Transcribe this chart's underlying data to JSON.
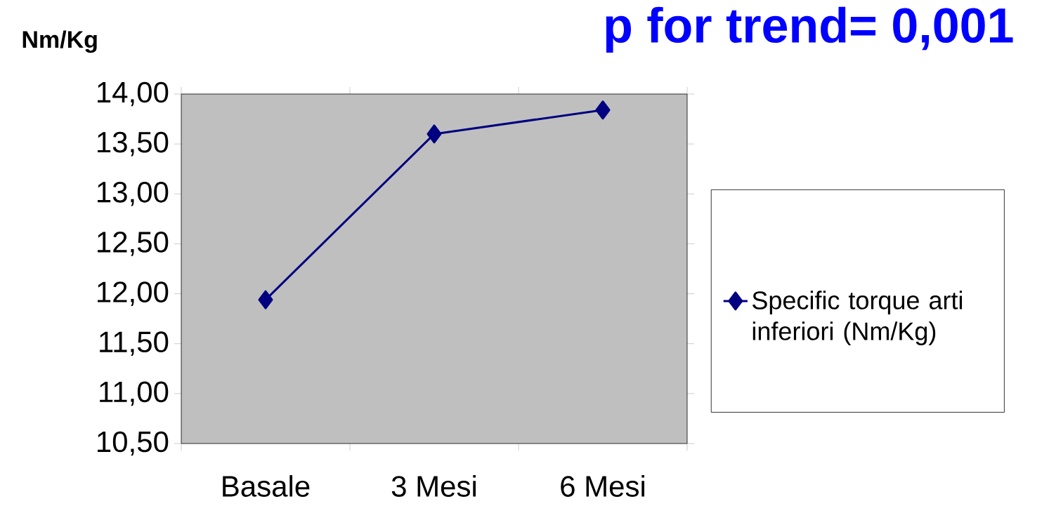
{
  "chart_data": {
    "type": "line",
    "title": "p for trend= 0,001",
    "ylabel": "Nm/Kg",
    "categories": [
      "Basale",
      "3 Mesi",
      "6 Mesi"
    ],
    "series": [
      {
        "name": "Specific torque arti inferiori (Nm/Kg)",
        "color": "#000080",
        "values": [
          11.94,
          13.6,
          13.84
        ]
      }
    ],
    "ylim": [
      10.5,
      14.0
    ],
    "yticks": [
      {
        "value": 10.5,
        "label": "10,50"
      },
      {
        "value": 11.0,
        "label": "11,00"
      },
      {
        "value": 11.5,
        "label": "11,50"
      },
      {
        "value": 12.0,
        "label": "12,00"
      },
      {
        "value": 12.5,
        "label": "12,50"
      },
      {
        "value": 13.0,
        "label": "13,00"
      },
      {
        "value": 13.5,
        "label": "13,50"
      },
      {
        "value": 14.0,
        "label": "14,00"
      }
    ],
    "grid": false,
    "legend": "right",
    "marker": "diamond",
    "line_style": "solid"
  }
}
